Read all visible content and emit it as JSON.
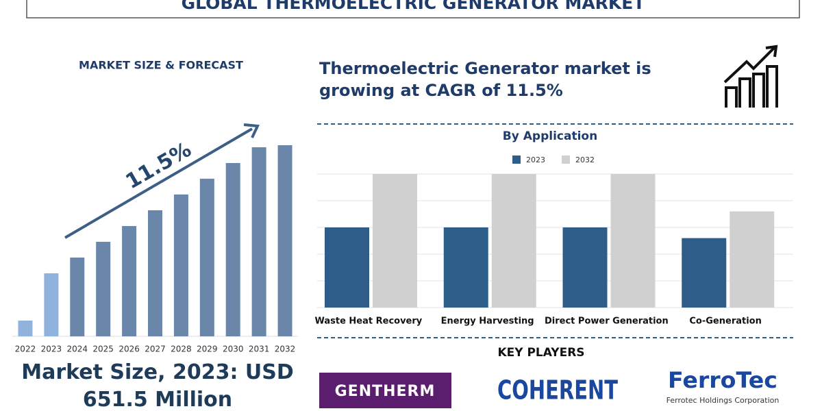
{
  "header": {
    "title": "GLOBAL THERMOELECTRIC GENERATOR MARKET"
  },
  "chart_data": [
    {
      "type": "bar",
      "title": "MARKET SIZE & FORECAST",
      "categories": [
        "2022",
        "2023",
        "2024",
        "2025",
        "2026",
        "2027",
        "2028",
        "2029",
        "2030",
        "2031",
        "2032"
      ],
      "values": [
        163,
        651.5,
        814,
        977,
        1140,
        1303,
        1466,
        1629,
        1791,
        1954,
        1975
      ],
      "colors": [
        "#8fb3dc",
        "#8fb3dc",
        "#6a86a8",
        "#6a86a8",
        "#6a86a8",
        "#6a86a8",
        "#6a86a8",
        "#6a86a8",
        "#6a86a8",
        "#6a86a8",
        "#6a86a8"
      ],
      "annotation": "11.5%"
    },
    {
      "type": "bar",
      "title": "By Application",
      "categories": [
        "Waste Heat Recovery",
        "Energy Harvesting",
        "Direct Power Generation",
        "Co-Generation"
      ],
      "series": [
        {
          "name": "2023",
          "color": "#2e5d8a",
          "values": [
            3,
            3,
            3,
            2.6
          ]
        },
        {
          "name": "2032",
          "color": "#d0d0d0",
          "values": [
            5,
            5,
            5,
            3.6
          ]
        }
      ],
      "ylim": [
        0,
        5
      ],
      "yticks": [
        0,
        1,
        2,
        3,
        4,
        5
      ],
      "grid": true,
      "legend": "top"
    }
  ],
  "headline": "Thermoelectric Generator market is growing at CAGR of 11.5%",
  "market_size": "Market Size, 2023: USD 651.5 Million",
  "key_players": {
    "title": "KEY PLAYERS",
    "logos": [
      {
        "name": "GENTHERM"
      },
      {
        "name": "COHERENT"
      },
      {
        "name": "FerroTec",
        "subtitle": "Ferrotec Holdings Corporation"
      }
    ]
  }
}
